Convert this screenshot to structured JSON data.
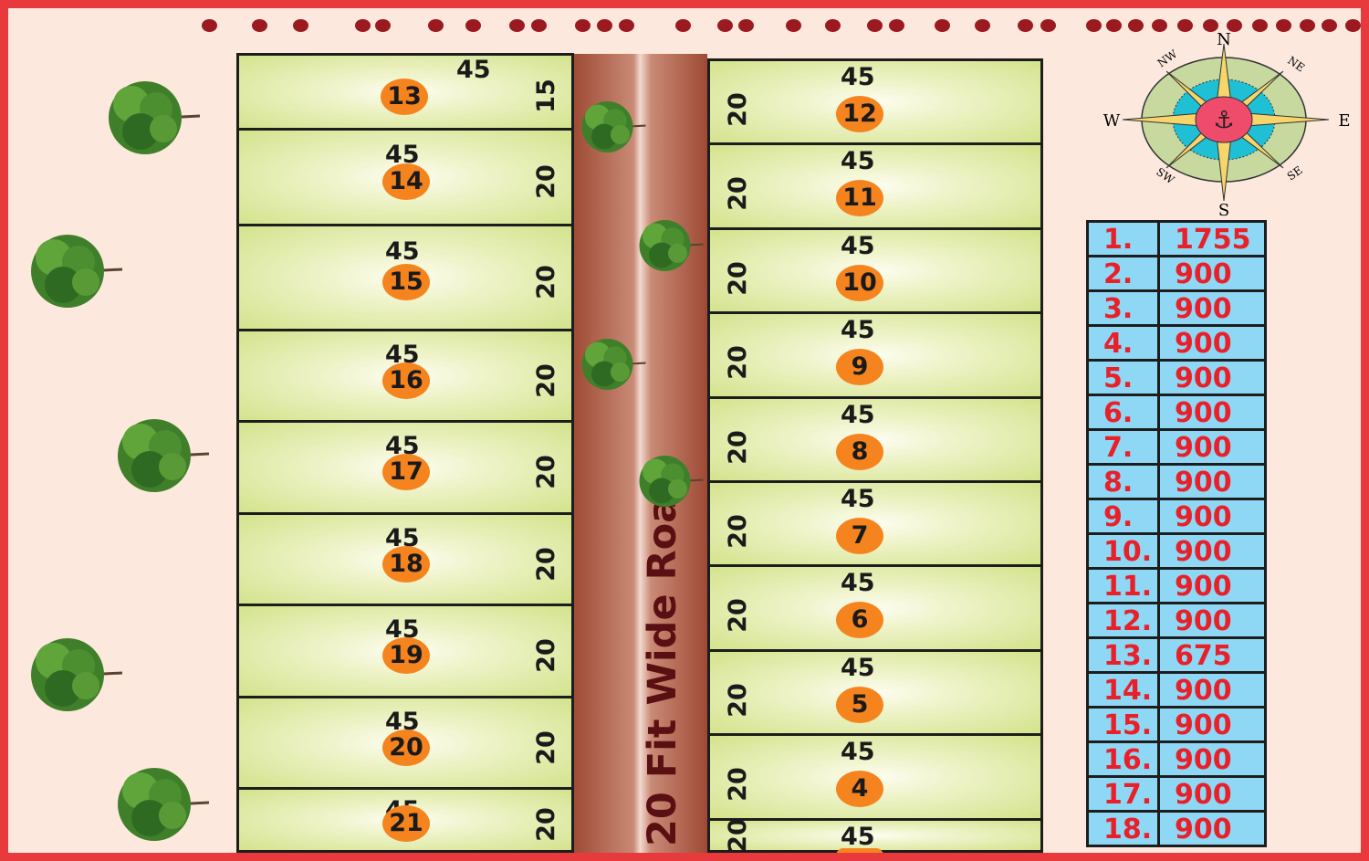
{
  "road_label": "20 Fit Wide Road",
  "compass": {
    "n": "N",
    "s": "S",
    "e": "E",
    "w": "W",
    "ne": "NE",
    "nw": "NW",
    "se": "SE",
    "sw": "SW",
    "center_icon": "anchor-icon"
  },
  "colors": {
    "border": "#e8393c",
    "background": "#fde8de",
    "plot": "#d3e38c",
    "badge": "#f5841f",
    "road": "#9e4a34",
    "table_cell": "#8fd8f5",
    "table_text": "#e8202a",
    "dots": "#9b1a1f"
  },
  "left_plots": [
    {
      "no": "13",
      "width": "45",
      "depth": "15"
    },
    {
      "no": "14",
      "width": "45",
      "depth": "20"
    },
    {
      "no": "15",
      "width": "45",
      "depth": "20"
    },
    {
      "no": "16",
      "width": "45",
      "depth": "20"
    },
    {
      "no": "17",
      "width": "45",
      "depth": "20"
    },
    {
      "no": "18",
      "width": "45",
      "depth": "20"
    },
    {
      "no": "19",
      "width": "45",
      "depth": "20"
    },
    {
      "no": "20",
      "width": "45",
      "depth": "20"
    },
    {
      "no": "21",
      "width": "45",
      "depth": "20"
    }
  ],
  "right_plots": [
    {
      "no": "12",
      "width": "45",
      "depth": "20"
    },
    {
      "no": "11",
      "width": "45",
      "depth": "20"
    },
    {
      "no": "10",
      "width": "45",
      "depth": "20"
    },
    {
      "no": "9",
      "width": "45",
      "depth": "20"
    },
    {
      "no": "8",
      "width": "45",
      "depth": "20"
    },
    {
      "no": "7",
      "width": "45",
      "depth": "20"
    },
    {
      "no": "6",
      "width": "45",
      "depth": "20"
    },
    {
      "no": "5",
      "width": "45",
      "depth": "20"
    },
    {
      "no": "4",
      "width": "45",
      "depth": "20"
    },
    {
      "no": "",
      "width": "45",
      "depth": "20"
    }
  ],
  "area_table": [
    {
      "no": "1.",
      "area": "1755"
    },
    {
      "no": "2.",
      "area": "900"
    },
    {
      "no": "3.",
      "area": "900"
    },
    {
      "no": "4.",
      "area": "900"
    },
    {
      "no": "5.",
      "area": "900"
    },
    {
      "no": "6.",
      "area": "900"
    },
    {
      "no": "7.",
      "area": "900"
    },
    {
      "no": "8.",
      "area": "900"
    },
    {
      "no": "9.",
      "area": "900"
    },
    {
      "no": "10.",
      "area": "900"
    },
    {
      "no": "11.",
      "area": "900"
    },
    {
      "no": "12.",
      "area": "900"
    },
    {
      "no": "13.",
      "area": "675"
    },
    {
      "no": "14.",
      "area": "900"
    },
    {
      "no": "15.",
      "area": "900"
    },
    {
      "no": "16.",
      "area": "900"
    },
    {
      "no": "17.",
      "area": "900"
    },
    {
      "no": "18.",
      "area": "900"
    }
  ]
}
